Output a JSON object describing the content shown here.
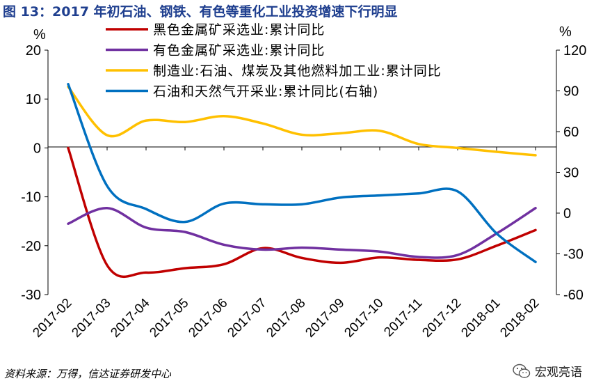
{
  "figure_title": "图 13：2017 年初石油、钢铁、有色等重化工业投资增速下行明显",
  "source": "资料来源：万得，信达证券研发中心",
  "watermark": "宏观亮语",
  "chart_data": {
    "type": "line",
    "left_unit": "%",
    "right_unit": "%",
    "categories": [
      "2017-02",
      "2017-03",
      "2017-04",
      "2017-05",
      "2017-06",
      "2017-07",
      "2017-08",
      "2017-09",
      "2017-10",
      "2017-11",
      "2017-12",
      "2018-01",
      "2018-02"
    ],
    "ylim_left": [
      -30,
      20
    ],
    "yticks_left": [
      20,
      10,
      0,
      -10,
      -20,
      -30
    ],
    "ylim_right": [
      -60,
      120
    ],
    "yticks_right": [
      120,
      90,
      60,
      30,
      0,
      -30,
      -60
    ],
    "series": [
      {
        "name": "黑色金属矿采选业:累计同比",
        "color": "#c00000",
        "axis": "left",
        "values": [
          0.0,
          -24.0,
          -25.5,
          -24.6,
          -23.8,
          -20.5,
          -22.5,
          -23.5,
          -22.4,
          -22.9,
          -22.8,
          -20.0,
          -16.8
        ]
      },
      {
        "name": "有色金属矿采选业:累计同比",
        "color": "#7030a0",
        "axis": "left",
        "values": [
          -15.5,
          -12.3,
          -16.3,
          -17.2,
          -19.8,
          -20.8,
          -20.4,
          -20.8,
          -21.2,
          -22.3,
          -21.9,
          -17.5,
          -12.3
        ]
      },
      {
        "name": "制造业:石油、煤炭及其他燃料加工业:累计同比",
        "color": "#ffc000",
        "axis": "left",
        "values": [
          12.5,
          2.6,
          5.6,
          5.3,
          6.5,
          5.0,
          2.7,
          3.0,
          3.5,
          0.8,
          0.0,
          -0.8,
          -1.5
        ]
      },
      {
        "name": "石油和天然气开采业:累计同比(右轴)",
        "color": "#0070c0",
        "axis": "right",
        "values": [
          95.0,
          20.0,
          3.0,
          -6.5,
          7.0,
          6.5,
          6.5,
          11.5,
          13.0,
          14.5,
          16.0,
          -15.0,
          -36.0
        ]
      }
    ],
    "legend_position": "top-center",
    "grid": false
  }
}
